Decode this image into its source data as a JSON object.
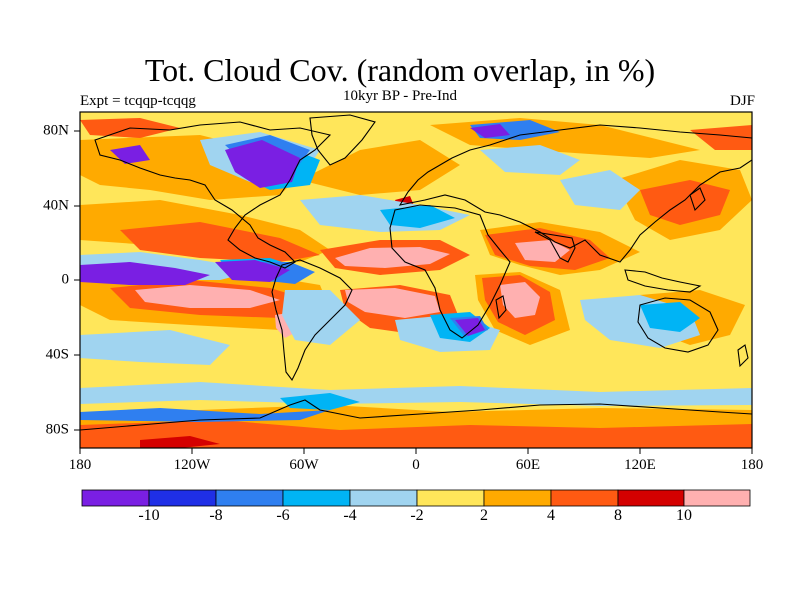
{
  "title": "Tot. Cloud Cov. (random overlap, in %)",
  "subtitle": "10kyr BP - Pre-Ind",
  "experiment": "Expt = tcqqp-tcqqg",
  "season": "DJF",
  "lat_labels": [
    "80N",
    "40N",
    "0",
    "40S",
    "80S"
  ],
  "lon_labels": [
    "180",
    "120W",
    "60W",
    "0",
    "60E",
    "120E",
    "180"
  ],
  "colorbar": {
    "labels": [
      "-10",
      "-8",
      "-6",
      "-4",
      "-2",
      "2",
      "4",
      "8",
      "10"
    ],
    "colors": [
      "#7a1fe3",
      "#1f2fe6",
      "#2f7ff0",
      "#00b4f5",
      "#a0d4f0",
      "#ffe65a",
      "#ffaa00",
      "#ff5a12",
      "#d40000",
      "#ffb0b0"
    ]
  },
  "palette": {
    "yellow": "#ffe65a",
    "orange": "#ffaa00",
    "redorange": "#ff5a12",
    "red": "#d40000",
    "pink": "#ffb0b0",
    "lightblue": "#a0d4f0",
    "cyan": "#00b4f5",
    "blue": "#2f7ff0",
    "darkblue": "#1f2fe6",
    "purple": "#7a1fe3"
  }
}
